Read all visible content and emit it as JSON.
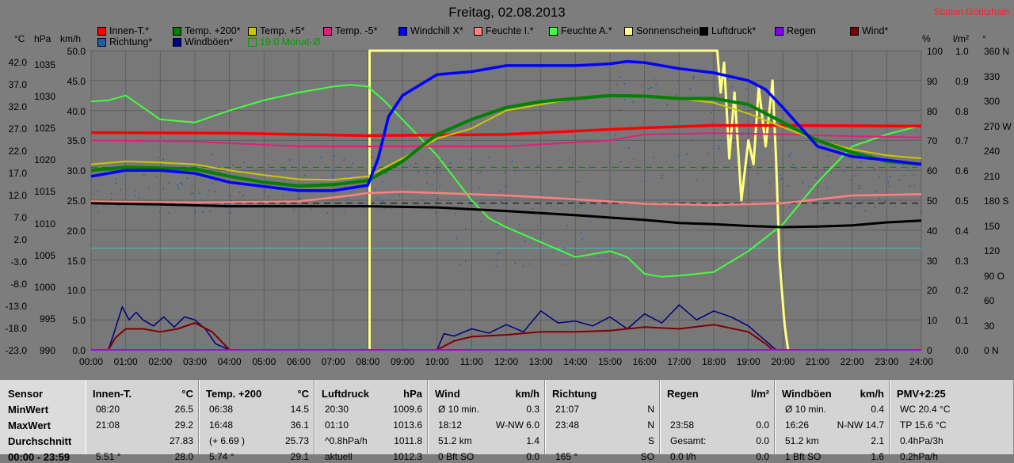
{
  "title": "Freitag, 02.08.2013",
  "station": "Station Göritzhain",
  "legend_row1": [
    {
      "label": "Innen-T.*",
      "color": "#ff0000"
    },
    {
      "label": "Temp. +200*",
      "color": "#008000"
    },
    {
      "label": "Temp. +5*",
      "color": "#c8c800"
    },
    {
      "label": "Temp. -5*",
      "color": "#e0207a"
    },
    {
      "label": "Windchill X*",
      "color": "#0000ff"
    },
    {
      "label": "Feuchte I.*",
      "color": "#ff8080"
    },
    {
      "label": "Feuchte A.*",
      "color": "#40ff40"
    },
    {
      "label": "Sonnenschein",
      "color": "#ffff80"
    },
    {
      "label": "Luftdruck*",
      "color": "#000000"
    },
    {
      "label": "Regen",
      "color": "#8000ff"
    },
    {
      "label": "Wind*",
      "color": "#800000"
    }
  ],
  "legend_row2": [
    {
      "label": "Richtung*",
      "color": "#1f5fa0"
    },
    {
      "label": "Windböen*",
      "color": "#000080"
    },
    {
      "label": "19.0 Monat-Ø",
      "color": "#00a000"
    }
  ],
  "units": {
    "c": "°C",
    "hpa": "hPa",
    "kmh": "km/h",
    "pct": "%",
    "lm2": "l/m²",
    "deg": "°"
  },
  "axes": {
    "celsius": [
      "42.0",
      "37.0",
      "32.0",
      "27.0",
      "22.0",
      "17.0",
      "12.0",
      "7.0",
      "2.0",
      "-3.0",
      "-8.0",
      "-13.0",
      "-18.0",
      "-23.0"
    ],
    "hpa": [
      "1035",
      "1030",
      "1025",
      "1020",
      "1015",
      "1010",
      "1005",
      "1000",
      "995",
      "990"
    ],
    "kmh": [
      "50.0",
      "45.0",
      "40.0",
      "35.0",
      "30.0",
      "25.0",
      "20.0",
      "15.0",
      "10.0",
      "5.0",
      "0.0"
    ],
    "pct": [
      "100",
      "90",
      "80",
      "70",
      "60",
      "50",
      "40",
      "30",
      "20",
      "10",
      "0"
    ],
    "rain": [
      "1.0",
      "0.9",
      "0.8",
      "0.7",
      "0.6",
      "0.5",
      "0.4",
      "0.3",
      "0.2",
      "0.1",
      "0.0"
    ],
    "dir": [
      "360 N",
      "330",
      "300",
      "270 W",
      "240",
      "210",
      "180 S",
      "150",
      "120",
      "90 O",
      "60",
      "30",
      "0 N"
    ]
  },
  "chart_data": {
    "type": "line",
    "x_ticks": [
      "00:00",
      "01:00",
      "02:00",
      "03:00",
      "04:00",
      "05:00",
      "06:00",
      "07:00",
      "08:00",
      "09:00",
      "10:00",
      "11:00",
      "12:00",
      "13:00",
      "14:00",
      "15:00",
      "16:00",
      "17:00",
      "18:00",
      "19:00",
      "20:00",
      "21:00",
      "22:00",
      "23:00",
      "24:00"
    ],
    "x_unit": "hours",
    "ylim_kmh": [
      0,
      50
    ],
    "series": [
      {
        "name": "Innen-T.*",
        "color": "#ff0000",
        "width": 3.5,
        "x": [
          0,
          4,
          8,
          12,
          16,
          18,
          20,
          24
        ],
        "y": [
          36.3,
          36.2,
          35.8,
          36.0,
          37.1,
          37.5,
          37.5,
          37.4
        ]
      },
      {
        "name": "Temp. +200*",
        "color": "#008000",
        "width": 4,
        "x": [
          0,
          1,
          2,
          3,
          4,
          5,
          6,
          7,
          8,
          9,
          10,
          11,
          12,
          13,
          14,
          15,
          16,
          17,
          18,
          19,
          20,
          21,
          22,
          23,
          24
        ],
        "y": [
          30.0,
          30.5,
          30.4,
          30.2,
          29.0,
          28.0,
          27.4,
          27.6,
          28.3,
          31.5,
          36.0,
          38.5,
          40.5,
          41.5,
          42.0,
          42.5,
          42.4,
          42.0,
          42.0,
          41.0,
          38.0,
          35.0,
          33.0,
          31.5,
          31.0
        ]
      },
      {
        "name": "Temp. +5*",
        "color": "#c8c800",
        "width": 2,
        "x": [
          0,
          1,
          2,
          3,
          4,
          5,
          6,
          7,
          8,
          9,
          10,
          11,
          12,
          13,
          14,
          15,
          16,
          17,
          18,
          19,
          20,
          21,
          22,
          23,
          24
        ],
        "y": [
          31.0,
          31.5,
          31.3,
          31.0,
          30.0,
          29.2,
          28.5,
          28.4,
          29.0,
          32.0,
          35.3,
          37.0,
          40.0,
          41.0,
          42.0,
          42.6,
          42.4,
          42.0,
          41.3,
          39.5,
          37.2,
          35.0,
          33.5,
          32.5,
          32.0
        ]
      },
      {
        "name": "Temp. -5*",
        "color": "#e0207a",
        "width": 2,
        "x": [
          0,
          3,
          6,
          9,
          12,
          15,
          16,
          18,
          20,
          22,
          24
        ],
        "y": [
          35.0,
          34.8,
          34.0,
          34.0,
          34.0,
          35.0,
          36.0,
          36.2,
          36.0,
          35.7,
          35.5
        ]
      },
      {
        "name": "Windchill X*",
        "color": "#0000ff",
        "width": 3.5,
        "x": [
          0,
          1,
          2,
          3,
          4,
          5,
          6,
          7,
          8,
          8.3,
          8.6,
          9,
          10,
          11,
          12,
          13,
          14,
          15,
          15.5,
          16,
          17,
          18,
          19,
          19.5,
          20,
          21,
          22,
          23,
          24
        ],
        "y": [
          29.0,
          30.0,
          30.0,
          29.5,
          28.0,
          27.3,
          26.6,
          26.6,
          27.5,
          32.0,
          39.0,
          42.5,
          46.0,
          46.5,
          47.5,
          47.5,
          47.5,
          47.8,
          48.2,
          48.0,
          47.0,
          46.3,
          45.0,
          43.5,
          40.5,
          34.0,
          32.3,
          31.7,
          31.0
        ]
      },
      {
        "name": "Feuchte I.*",
        "color": "#ff8080",
        "width": 2.5,
        "x": [
          0,
          3,
          6,
          7.5,
          8,
          9,
          10,
          11,
          12,
          13,
          15,
          16,
          18,
          20,
          22,
          24
        ],
        "y": [
          24.8,
          24.6,
          24.8,
          25.8,
          26.2,
          26.4,
          26.2,
          26.0,
          25.8,
          25.5,
          24.8,
          24.4,
          24.2,
          24.5,
          25.8,
          26.0
        ]
      },
      {
        "name": "Feuchte A.*",
        "color": "#40ff40",
        "width": 2,
        "x": [
          0,
          0.5,
          1,
          2,
          3,
          4,
          5,
          6,
          7,
          7.5,
          8,
          8.5,
          9,
          10,
          11,
          11.5,
          12,
          13,
          14,
          15,
          15.5,
          16,
          16.5,
          17,
          18,
          19,
          20,
          21,
          22,
          23,
          24
        ],
        "y": [
          41.5,
          41.7,
          42.5,
          38.5,
          38.0,
          40.0,
          41.7,
          43.0,
          44.0,
          44.3,
          44.0,
          41.5,
          38.5,
          32.5,
          25.0,
          22.0,
          20.5,
          18.0,
          15.5,
          16.5,
          15.5,
          12.7,
          12.2,
          12.4,
          13.0,
          16.5,
          21.0,
          28.0,
          34.0,
          36.0,
          37.5
        ]
      },
      {
        "name": "Sonnenschein",
        "color": "#ffff80",
        "width": 3,
        "x": [
          8.05,
          8.05,
          18.1,
          18.2,
          18.3,
          18.45,
          18.6,
          18.8,
          19.0,
          19.15,
          19.3,
          19.5,
          19.7,
          19.8,
          19.9,
          20.05,
          20.15,
          20.15
        ],
        "y": [
          0,
          50,
          50,
          43,
          48,
          32,
          43,
          25,
          35,
          31,
          44,
          34,
          45,
          32,
          15,
          4,
          0,
          0
        ]
      },
      {
        "name": "Luftdruck*",
        "color": "#000000",
        "width": 3,
        "x": [
          0,
          2,
          4,
          6,
          8,
          10,
          12,
          14,
          16,
          17,
          18,
          19,
          20,
          21,
          22,
          23,
          24
        ],
        "y": [
          24.5,
          24.3,
          24.0,
          24.0,
          24.0,
          23.8,
          23.2,
          22.5,
          21.7,
          21.2,
          21.0,
          20.7,
          20.5,
          20.6,
          20.8,
          21.3,
          21.6
        ]
      },
      {
        "name": "Wind*",
        "color": "#800000",
        "width": 2,
        "x": [
          0,
          0.5,
          0.7,
          1,
          1.5,
          2,
          2.5,
          3,
          3.5,
          4,
          10,
          10.5,
          11,
          12,
          13,
          14,
          15,
          16,
          17,
          18,
          19,
          19.5,
          19.7,
          24
        ],
        "y": [
          0,
          0,
          2.0,
          3.5,
          3.5,
          3.0,
          3.5,
          4.5,
          3.0,
          0,
          0,
          1.5,
          2.2,
          2.5,
          3.0,
          3.0,
          3.2,
          3.8,
          3.5,
          4.2,
          3.0,
          1.0,
          0,
          0
        ]
      },
      {
        "name": "Windböen*",
        "color": "#000080",
        "width": 1.5,
        "x": [
          0,
          0.5,
          0.7,
          0.9,
          1.1,
          1.3,
          1.5,
          1.8,
          2.1,
          2.4,
          2.7,
          3.0,
          3.3,
          3.6,
          4,
          10,
          10.2,
          10.5,
          11,
          11.5,
          12,
          12.5,
          13,
          13.5,
          14,
          14.5,
          15,
          15.5,
          16,
          16.5,
          17,
          17.5,
          18,
          18.5,
          19,
          19.5,
          19.8,
          24
        ],
        "y": [
          0,
          0,
          3.5,
          7.2,
          5.0,
          6.3,
          5.0,
          4.0,
          5.5,
          3.8,
          5.5,
          5.0,
          3.5,
          1.0,
          0,
          0,
          2.7,
          2.3,
          3.5,
          2.8,
          4.2,
          3.0,
          6.5,
          4.5,
          4.8,
          4.0,
          5.5,
          3.5,
          6.0,
          4.5,
          7.5,
          5.0,
          6.5,
          5.5,
          4.0,
          1.5,
          0,
          0
        ]
      }
    ],
    "reference_lines": [
      {
        "name": "19.0 Monat-Ø",
        "y": 30.5,
        "color": "#008000",
        "dash": true
      },
      {
        "name": "pressure-ref",
        "y": 24.5,
        "color": "#000000",
        "dash": true
      },
      {
        "name": "cyan-ref",
        "y": 17.0,
        "color": "#40c0c0",
        "dash": false
      }
    ]
  },
  "table": {
    "row_labels": [
      "Sensor",
      "MinWert",
      "MaxWert",
      "Durchschnitt",
      "00:00 - 23:59"
    ],
    "columns": [
      {
        "header": "Innen-T.",
        "unit": "°C",
        "rows": [
          [
            "08:20",
            "26.5"
          ],
          [
            "21:08",
            "29.2"
          ],
          [
            "",
            "27.83"
          ],
          [
            "5.51 °",
            "28.0"
          ]
        ]
      },
      {
        "header": "Temp. +200",
        "unit": "°C",
        "rows": [
          [
            "06:38",
            "14.5"
          ],
          [
            "16:48",
            "36.1"
          ],
          [
            "(+ 6.69 )",
            "25.73"
          ],
          [
            "5.74 °",
            "29.1"
          ]
        ]
      },
      {
        "header": "Luftdruck",
        "unit": "hPa",
        "rows": [
          [
            "20:30",
            "1009.6"
          ],
          [
            "01:10",
            "1013.6"
          ],
          [
            "^0.8hPa/h",
            "1011.8"
          ],
          [
            "aktuell",
            "1012.3"
          ]
        ]
      },
      {
        "header": "Wind",
        "unit": "km/h",
        "rows": [
          [
            "Ø 10 min.",
            "0.3"
          ],
          [
            "18:12",
            "W-NW 6.0"
          ],
          [
            "51.2 km",
            "1.4"
          ],
          [
            "0 Bft SO",
            "0.0"
          ]
        ]
      },
      {
        "header": "Richtung",
        "unit": "",
        "rows": [
          [
            "21:07",
            "N"
          ],
          [
            "23:48",
            "N"
          ],
          [
            "",
            "S"
          ],
          [
            "165 °",
            "SO"
          ]
        ]
      },
      {
        "header": "Regen",
        "unit": "l/m²",
        "rows": [
          [
            "",
            ""
          ],
          [
            "23:58",
            "0.0"
          ],
          [
            "Gesamt:",
            "0.0"
          ],
          [
            "0.0 l/h",
            "0.0"
          ]
        ]
      },
      {
        "header": "Windböen",
        "unit": "km/h",
        "rows": [
          [
            "Ø 10 min.",
            "0.4"
          ],
          [
            "16:26",
            "N-NW 14.7"
          ],
          [
            "51.2 km",
            "2.1"
          ],
          [
            "1 Bft SO",
            "1.6"
          ]
        ]
      },
      {
        "header": "PMV+2:25",
        "unit": "",
        "rows": [
          [
            "WC 20.4 °C",
            ""
          ],
          [
            "TP 15.6 °C",
            ""
          ],
          [
            "0.4hPa/3h",
            ""
          ],
          [
            "0.2hPa/h",
            ""
          ]
        ]
      }
    ]
  }
}
